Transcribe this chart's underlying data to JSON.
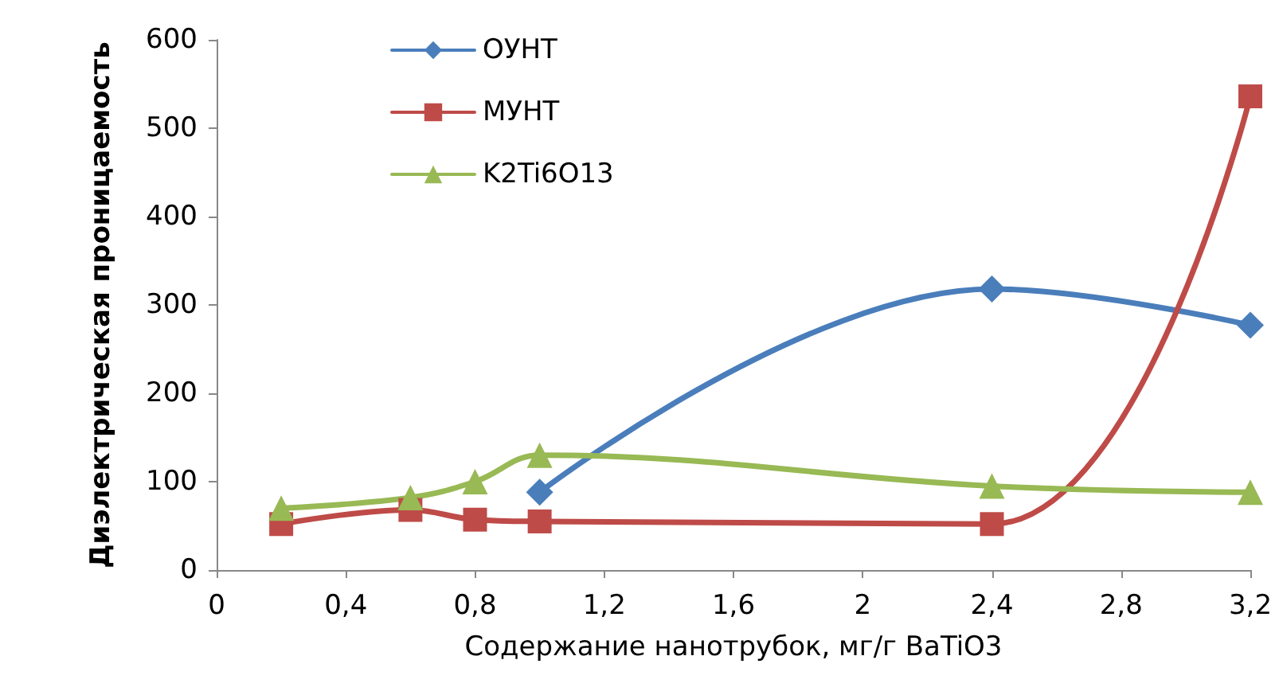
{
  "chart_data": {
    "type": "line",
    "xlabel": "Содержание нанотрубок, мг/г BaTiO3",
    "ylabel": "Диэлектрическая проницаемость",
    "x": [
      0.2,
      0.6,
      0.8,
      1.0,
      2.4,
      3.2
    ],
    "series": [
      {
        "name": "ОУНТ",
        "color": "#4a7ebb",
        "marker": "diamond",
        "values": [
          null,
          null,
          null,
          88,
          318,
          277
        ]
      },
      {
        "name": "МУНТ",
        "color": "#be4b48",
        "marker": "square",
        "values": [
          52,
          68,
          57,
          55,
          52,
          536
        ]
      },
      {
        "name": "K2Ti6O13",
        "color": "#98b954",
        "marker": "triangle",
        "values": [
          70,
          82,
          100,
          130,
          95,
          88
        ]
      }
    ],
    "xlim": [
      0,
      3.2
    ],
    "xticks": [
      0,
      {
        "value": 0.4,
        "label": "0,4"
      },
      {
        "value": 0.8,
        "label": "0,8"
      },
      {
        "value": 1.2,
        "label": "1,2"
      },
      {
        "value": 1.6,
        "label": "1,6"
      },
      2,
      {
        "value": 2.4,
        "label": "2,4"
      },
      {
        "value": 2.8,
        "label": "2,8"
      },
      {
        "value": 3.2,
        "label": "3,2"
      }
    ],
    "ylim": [
      0,
      600
    ],
    "yticks": [
      0,
      100,
      200,
      300,
      400,
      500,
      600
    ],
    "grid": false,
    "legend": "top left"
  }
}
